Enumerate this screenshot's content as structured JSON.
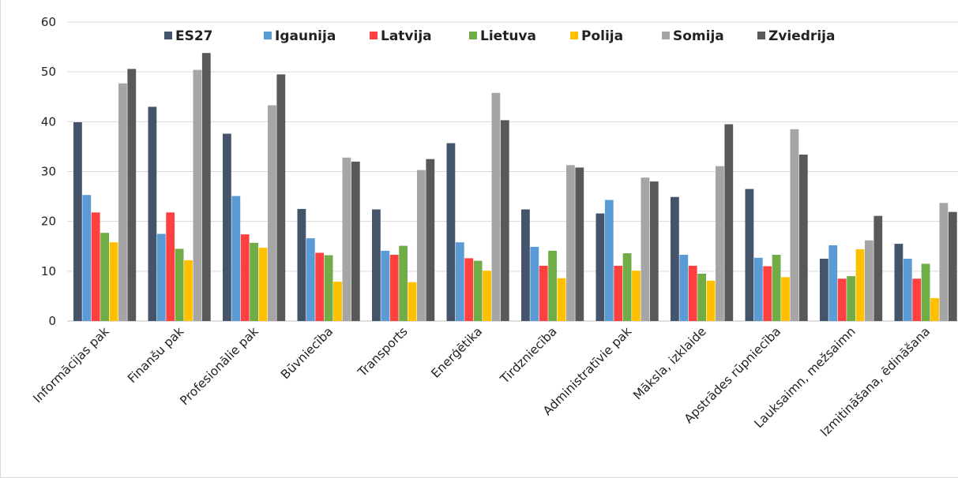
{
  "chart_data": {
    "type": "bar",
    "title": "",
    "xlabel": "",
    "ylabel": "",
    "ylim": [
      0,
      60
    ],
    "yticks": [
      0,
      10,
      20,
      30,
      40,
      50,
      60
    ],
    "grid": true,
    "legend_position": "top",
    "categories": [
      "Informācijas pak",
      "Finanšu pak",
      "Profesionālie pak",
      "Būvniecība",
      "Transports",
      "Enerģētika",
      "Tirdzniecība",
      "Administratīvie pak",
      "Māksla, izklaide",
      "Apstrādes rūpniecība",
      "Lauksaimn, mežsaimn",
      "Izmitināšana, ēdināšana"
    ],
    "series": [
      {
        "name": "ES27",
        "color": "#44546a",
        "values": [
          39.9,
          43.0,
          37.6,
          22.5,
          22.4,
          35.7,
          22.4,
          21.6,
          24.9,
          26.5,
          12.5,
          15.5
        ]
      },
      {
        "name": "Igaunija",
        "color": "#5b9bd5",
        "values": [
          25.3,
          17.5,
          25.1,
          16.6,
          14.1,
          15.8,
          14.9,
          24.3,
          13.3,
          12.7,
          15.2,
          12.5
        ]
      },
      {
        "name": "Latvija",
        "color": "#ff4040",
        "values": [
          21.8,
          21.8,
          17.4,
          13.7,
          13.3,
          12.6,
          11.1,
          11.1,
          11.1,
          11.0,
          8.5,
          8.5
        ]
      },
      {
        "name": "Lietuva",
        "color": "#70ad47",
        "values": [
          17.7,
          14.5,
          15.7,
          13.2,
          15.1,
          12.1,
          14.1,
          13.6,
          9.5,
          13.3,
          9.0,
          11.5
        ]
      },
      {
        "name": "Polija",
        "color": "#ffc000",
        "values": [
          15.8,
          12.2,
          14.7,
          7.9,
          7.8,
          10.1,
          8.6,
          10.1,
          8.1,
          8.8,
          14.4,
          4.6
        ]
      },
      {
        "name": "Somija",
        "color": "#a5a5a5",
        "values": [
          47.7,
          50.4,
          43.3,
          32.8,
          30.3,
          45.8,
          31.3,
          28.8,
          31.1,
          38.5,
          16.2,
          23.7
        ]
      },
      {
        "name": "Zviedrija",
        "color": "#595959",
        "values": [
          50.6,
          53.8,
          49.5,
          32.0,
          32.5,
          40.3,
          30.8,
          28.0,
          39.5,
          33.4,
          21.1,
          21.9
        ]
      }
    ]
  }
}
